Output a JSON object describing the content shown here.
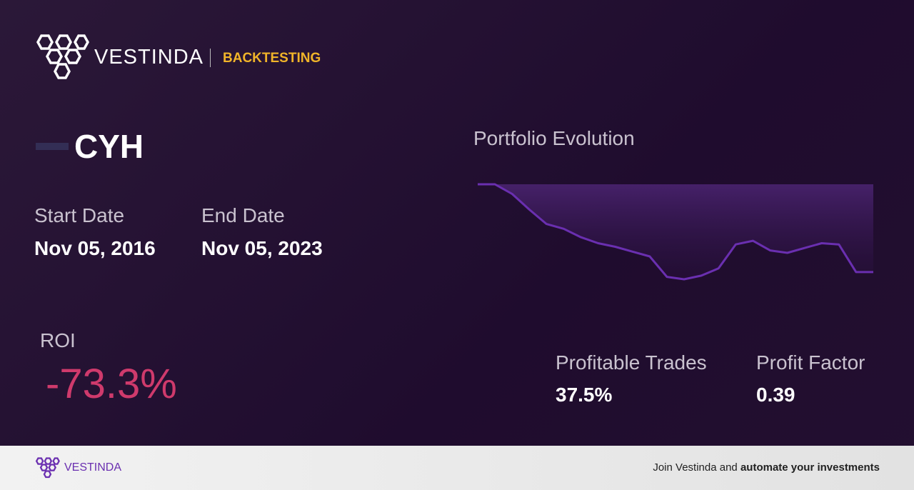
{
  "header": {
    "brand": "VESTINDA",
    "section": "BACKTESTING"
  },
  "ticker": "CYH",
  "start_date": {
    "label": "Start Date",
    "value": "Nov 05, 2016"
  },
  "end_date": {
    "label": "End Date",
    "value": "Nov 05, 2023"
  },
  "roi": {
    "label": "ROI",
    "value": "-73.3%"
  },
  "chart_data": {
    "type": "line",
    "title": "Portfolio Evolution",
    "color": "#6a2fb0",
    "values": [
      100,
      100,
      92,
      79,
      67,
      63,
      56,
      51,
      48,
      44,
      40,
      23,
      21,
      24,
      30,
      50,
      53,
      45,
      43,
      47,
      51,
      50,
      27,
      27
    ]
  },
  "stats": [
    {
      "label": "Profitable Trades",
      "value": "37.5%"
    },
    {
      "label": "Profit Factor",
      "value": "0.39"
    }
  ],
  "footer": {
    "brand": "VESTINDA",
    "text": "Join Vestinda and",
    "emphasis": "automate your investments"
  }
}
